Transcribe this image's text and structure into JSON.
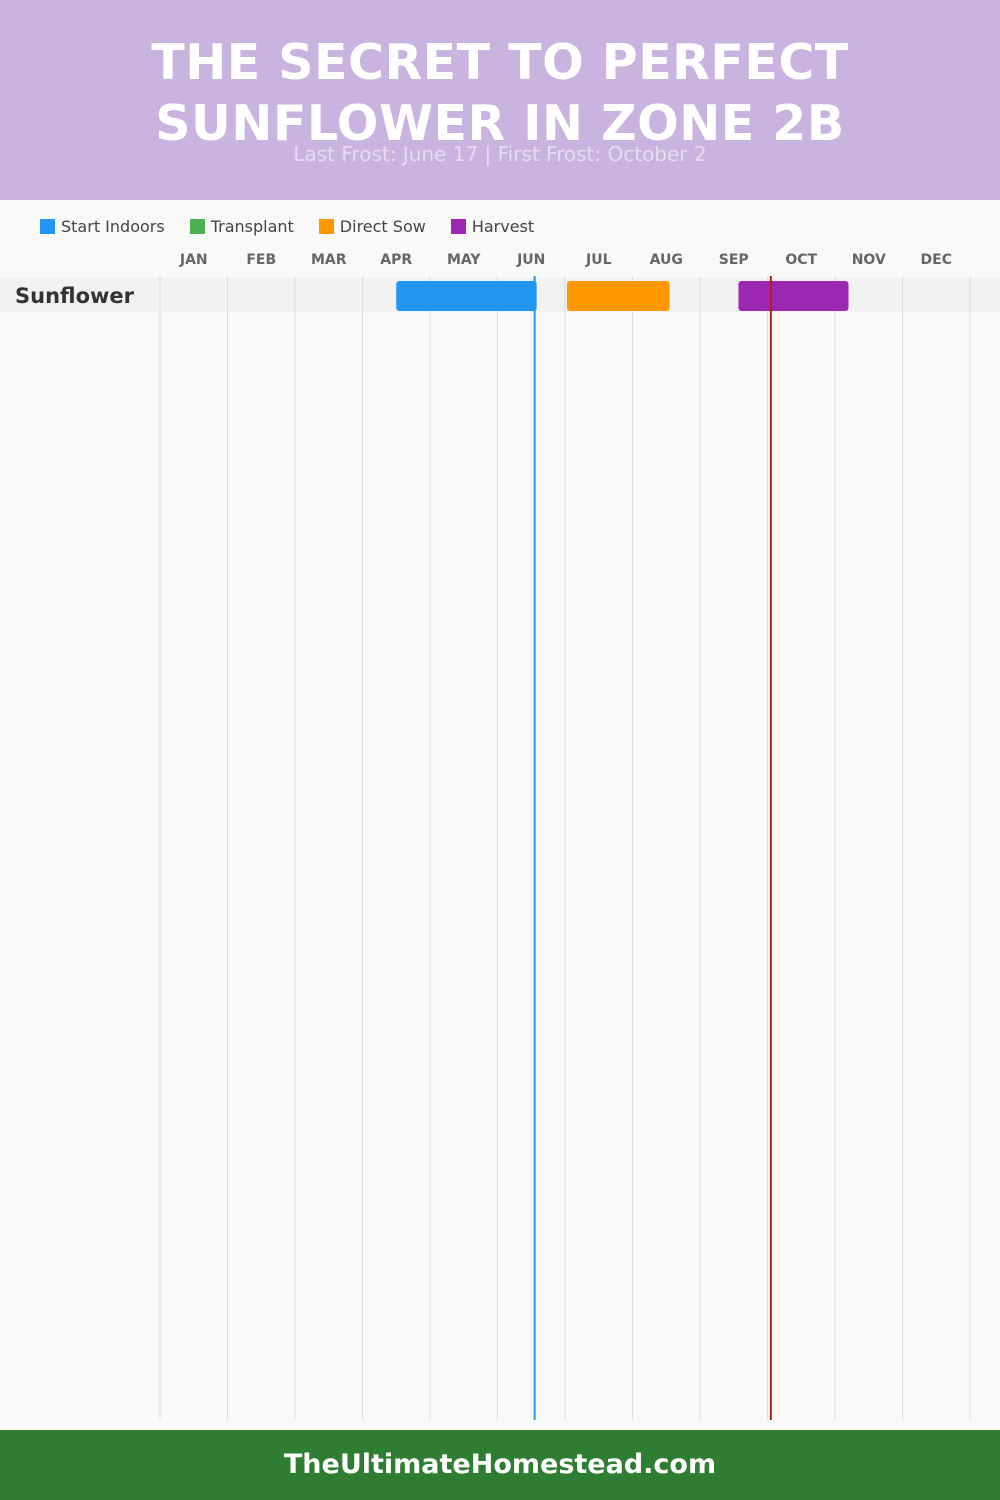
{
  "header": {
    "title_line1": "THE SECRET TO PERFECT",
    "title_line2": "SUNFLOWER IN ZONE 2B",
    "subtitle": "Last Frost: June 17 | First Frost: October 2"
  },
  "legend": [
    {
      "label": "Start Indoors",
      "color": "#2196f3"
    },
    {
      "label": "Transplant",
      "color": "#4caf50"
    },
    {
      "label": "Direct Sow",
      "color": "#ff9800"
    },
    {
      "label": "Harvest",
      "color": "#9c27b0"
    }
  ],
  "chart_data": {
    "type": "gantt",
    "months": [
      "JAN",
      "FEB",
      "MAR",
      "APR",
      "MAY",
      "JUN",
      "JUL",
      "AUG",
      "SEP",
      "OCT",
      "NOV",
      "DEC"
    ],
    "rows": [
      {
        "label": "Sunflower",
        "tasks": [
          {
            "phase": "Start Indoors",
            "start": 3.5,
            "end": 5.58,
            "color": "#2196f3"
          },
          {
            "phase": "Direct Sow",
            "start": 6.03,
            "end": 7.55,
            "color": "#ff9800"
          },
          {
            "phase": "Harvest",
            "start": 8.57,
            "end": 10.2,
            "color": "#9c27b0"
          }
        ]
      }
    ],
    "markers": [
      {
        "name": "Last Frost",
        "date": "June 17",
        "month_value": 5.55,
        "color": "#2196f3"
      },
      {
        "name": "First Frost",
        "date": "October 2",
        "month_value": 9.05,
        "color": "#b71c1c"
      }
    ],
    "grid": true
  },
  "footer": {
    "text": "TheUltimateHomestead.com"
  }
}
